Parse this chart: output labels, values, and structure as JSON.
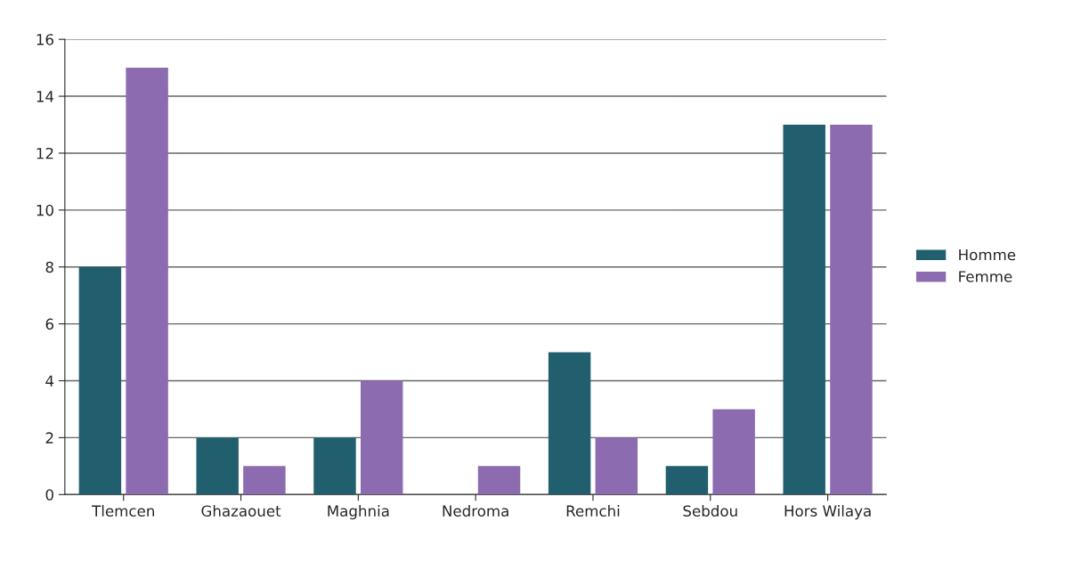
{
  "chart_data": {
    "type": "bar",
    "categories": [
      "Tlemcen",
      "Ghazaouet",
      "Maghnia",
      "Nedroma",
      "Remchi",
      "Sebdou",
      "Hors Wilaya"
    ],
    "series": [
      {
        "name": "Homme",
        "color": "#215f6e",
        "values": [
          8,
          2,
          2,
          0,
          5,
          1,
          13
        ]
      },
      {
        "name": "Femme",
        "color": "#8c6bb1",
        "values": [
          15,
          1,
          4,
          1,
          2,
          3,
          13
        ]
      }
    ],
    "ylim": [
      0,
      16
    ],
    "yticks": [
      0,
      2,
      4,
      6,
      8,
      10,
      12,
      14,
      16
    ],
    "grid": "y",
    "legend": "right"
  }
}
